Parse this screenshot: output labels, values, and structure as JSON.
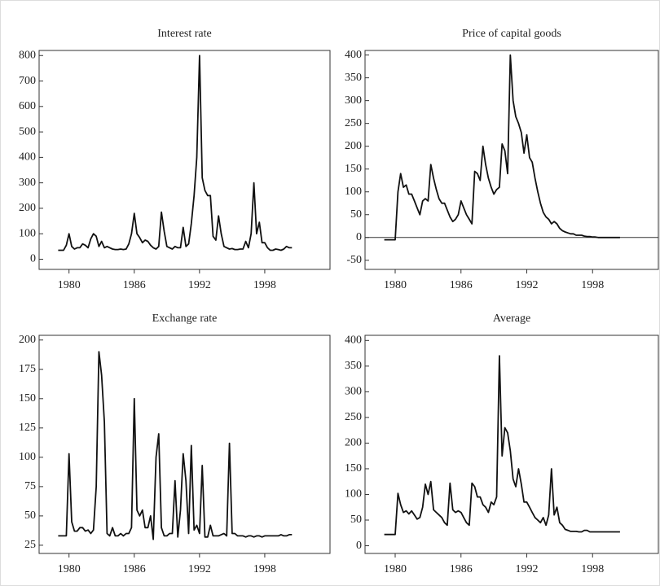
{
  "chart_data": [
    {
      "type": "line",
      "title": "Interest rate",
      "color": "#111111",
      "x": [
        1979,
        1979.25,
        1979.5,
        1979.75,
        1980,
        1980.25,
        1980.5,
        1980.75,
        1981,
        1981.25,
        1981.5,
        1981.75,
        1982,
        1982.25,
        1982.5,
        1982.75,
        1983,
        1983.25,
        1983.5,
        1983.75,
        1984,
        1984.25,
        1984.5,
        1984.75,
        1985,
        1985.25,
        1985.5,
        1985.75,
        1986,
        1986.25,
        1986.5,
        1986.75,
        1987,
        1987.25,
        1987.5,
        1987.75,
        1988,
        1988.25,
        1988.5,
        1988.75,
        1989,
        1989.25,
        1989.5,
        1989.75,
        1990,
        1990.25,
        1990.5,
        1990.75,
        1991,
        1991.25,
        1991.5,
        1991.75,
        1992,
        1992.25,
        1992.5,
        1992.75,
        1993,
        1993.25,
        1993.5,
        1993.75,
        1994,
        1994.25,
        1994.5,
        1994.75,
        1995,
        1995.25,
        1995.5,
        1995.75,
        1996,
        1996.25,
        1996.5,
        1996.75,
        1997,
        1997.25,
        1997.5,
        1997.75,
        1998,
        1998.25,
        1998.5,
        1998.75,
        1999,
        1999.25,
        1999.5,
        1999.75,
        2000,
        2000.25,
        2000.5
      ],
      "values": [
        35,
        35,
        35,
        55,
        100,
        50,
        40,
        45,
        45,
        60,
        55,
        45,
        80,
        100,
        90,
        50,
        70,
        45,
        50,
        45,
        40,
        38,
        38,
        40,
        38,
        40,
        60,
        100,
        180,
        100,
        85,
        65,
        75,
        70,
        55,
        45,
        40,
        50,
        185,
        110,
        50,
        45,
        40,
        50,
        45,
        45,
        125,
        50,
        60,
        140,
        250,
        400,
        800,
        320,
        270,
        250,
        250,
        90,
        75,
        170,
        100,
        50,
        45,
        40,
        42,
        38,
        38,
        40,
        40,
        70,
        45,
        100,
        300,
        100,
        145,
        65,
        65,
        45,
        35,
        35,
        40,
        38,
        35,
        40,
        50,
        45,
        45
      ],
      "xlim": [
        1977.25,
        2004
      ],
      "xticks": [
        1980,
        1986,
        1992,
        1998
      ],
      "ylim": [
        -40,
        820
      ],
      "yticks": [
        0,
        100,
        200,
        300,
        400,
        500,
        600,
        700,
        800
      ]
    },
    {
      "type": "line",
      "title": "Price of capital goods",
      "color": "#111111",
      "x": [
        1979,
        1979.25,
        1979.5,
        1979.75,
        1980,
        1980.25,
        1980.5,
        1980.75,
        1981,
        1981.25,
        1981.5,
        1981.75,
        1982,
        1982.25,
        1982.5,
        1982.75,
        1983,
        1983.25,
        1983.5,
        1983.75,
        1984,
        1984.25,
        1984.5,
        1984.75,
        1985,
        1985.25,
        1985.5,
        1985.75,
        1986,
        1986.25,
        1986.5,
        1986.75,
        1987,
        1987.25,
        1987.5,
        1987.75,
        1988,
        1988.25,
        1988.5,
        1988.75,
        1989,
        1989.25,
        1989.5,
        1989.75,
        1990,
        1990.25,
        1990.5,
        1990.75,
        1991,
        1991.25,
        1991.5,
        1991.75,
        1992,
        1992.25,
        1992.5,
        1992.75,
        1993,
        1993.25,
        1993.5,
        1993.75,
        1994,
        1994.25,
        1994.5,
        1994.75,
        1995,
        1995.25,
        1995.5,
        1995.75,
        1996,
        1996.25,
        1996.5,
        1996.75,
        1997,
        1997.25,
        1997.5,
        1997.75,
        1998,
        1998.25,
        1998.5,
        1998.75,
        1999,
        1999.25,
        1999.5,
        1999.75,
        2000,
        2000.25,
        2000.5
      ],
      "values": [
        -5,
        -5,
        -5,
        -5,
        -5,
        100,
        140,
        110,
        115,
        95,
        95,
        80,
        65,
        50,
        80,
        85,
        80,
        160,
        130,
        105,
        85,
        75,
        75,
        60,
        45,
        35,
        40,
        50,
        80,
        65,
        50,
        40,
        30,
        145,
        140,
        125,
        200,
        160,
        130,
        110,
        95,
        105,
        110,
        205,
        190,
        140,
        400,
        300,
        265,
        250,
        230,
        185,
        225,
        175,
        165,
        130,
        100,
        75,
        55,
        45,
        40,
        30,
        35,
        30,
        20,
        15,
        12,
        10,
        8,
        8,
        5,
        5,
        5,
        3,
        2,
        2,
        1,
        1,
        0,
        0,
        0,
        0,
        0,
        0,
        0,
        0,
        0
      ],
      "xlim": [
        1977.25,
        2004
      ],
      "xticks": [
        1980,
        1986,
        1992,
        1998
      ],
      "ylim": [
        -70,
        410
      ],
      "yticks": [
        -50,
        0,
        50,
        100,
        150,
        200,
        250,
        300,
        350,
        400
      ],
      "zero_line": true
    },
    {
      "type": "line",
      "title": "Exchange rate",
      "color": "#111111",
      "x": [
        1979,
        1979.25,
        1979.5,
        1979.75,
        1980,
        1980.25,
        1980.5,
        1980.75,
        1981,
        1981.25,
        1981.5,
        1981.75,
        1982,
        1982.25,
        1982.5,
        1982.75,
        1983,
        1983.25,
        1983.5,
        1983.75,
        1984,
        1984.25,
        1984.5,
        1984.75,
        1985,
        1985.25,
        1985.5,
        1985.75,
        1986,
        1986.25,
        1986.5,
        1986.75,
        1987,
        1987.25,
        1987.5,
        1987.75,
        1988,
        1988.25,
        1988.5,
        1988.75,
        1989,
        1989.25,
        1989.5,
        1989.75,
        1990,
        1990.25,
        1990.5,
        1990.75,
        1991,
        1991.25,
        1991.5,
        1991.75,
        1992,
        1992.25,
        1992.5,
        1992.75,
        1993,
        1993.25,
        1993.5,
        1993.75,
        1994,
        1994.25,
        1994.5,
        1994.75,
        1995,
        1995.25,
        1995.5,
        1995.75,
        1996,
        1996.25,
        1996.5,
        1996.75,
        1997,
        1997.25,
        1997.5,
        1997.75,
        1998,
        1998.25,
        1998.5,
        1998.75,
        1999,
        1999.25,
        1999.5,
        1999.75,
        2000,
        2000.25,
        2000.5
      ],
      "values": [
        33,
        33,
        33,
        33,
        103,
        45,
        37,
        37,
        40,
        40,
        37,
        38,
        35,
        38,
        75,
        190,
        170,
        130,
        35,
        33,
        40,
        33,
        33,
        35,
        33,
        35,
        35,
        40,
        150,
        55,
        50,
        55,
        40,
        40,
        50,
        30,
        100,
        120,
        40,
        33,
        33,
        35,
        35,
        80,
        32,
        55,
        103,
        80,
        35,
        110,
        38,
        42,
        35,
        93,
        32,
        32,
        42,
        33,
        33,
        33,
        34,
        35,
        33,
        112,
        35,
        35,
        33,
        33,
        33,
        32,
        33,
        33,
        32,
        33,
        33,
        32,
        33,
        33,
        33,
        33,
        33,
        33,
        34,
        33,
        33,
        34,
        34
      ],
      "xlim": [
        1977.25,
        2004
      ],
      "xticks": [
        1980,
        1986,
        1992,
        1998
      ],
      "ylim": [
        18,
        204
      ],
      "yticks": [
        25,
        50,
        75,
        100,
        125,
        150,
        175,
        200
      ]
    },
    {
      "type": "line",
      "title": "Average",
      "color": "#111111",
      "x": [
        1979,
        1979.25,
        1979.5,
        1979.75,
        1980,
        1980.25,
        1980.5,
        1980.75,
        1981,
        1981.25,
        1981.5,
        1981.75,
        1982,
        1982.25,
        1982.5,
        1982.75,
        1983,
        1983.25,
        1983.5,
        1983.75,
        1984,
        1984.25,
        1984.5,
        1984.75,
        1985,
        1985.25,
        1985.5,
        1985.75,
        1986,
        1986.25,
        1986.5,
        1986.75,
        1987,
        1987.25,
        1987.5,
        1987.75,
        1988,
        1988.25,
        1988.5,
        1988.75,
        1989,
        1989.25,
        1989.5,
        1989.75,
        1990,
        1990.25,
        1990.5,
        1990.75,
        1991,
        1991.25,
        1991.5,
        1991.75,
        1992,
        1992.25,
        1992.5,
        1992.75,
        1993,
        1993.25,
        1993.5,
        1993.75,
        1994,
        1994.25,
        1994.5,
        1994.75,
        1995,
        1995.25,
        1995.5,
        1995.75,
        1996,
        1996.25,
        1996.5,
        1996.75,
        1997,
        1997.25,
        1997.5,
        1997.75,
        1998,
        1998.25,
        1998.5,
        1998.75,
        1999,
        1999.25,
        1999.5,
        1999.75,
        2000,
        2000.25,
        2000.5
      ],
      "values": [
        22,
        22,
        22,
        22,
        22,
        102,
        80,
        65,
        68,
        62,
        68,
        60,
        52,
        55,
        75,
        120,
        100,
        125,
        70,
        65,
        60,
        55,
        45,
        40,
        122,
        70,
        65,
        68,
        65,
        55,
        45,
        40,
        122,
        115,
        95,
        95,
        80,
        75,
        65,
        85,
        80,
        95,
        370,
        175,
        230,
        220,
        185,
        130,
        115,
        150,
        120,
        85,
        85,
        75,
        65,
        55,
        50,
        45,
        55,
        40,
        60,
        150,
        60,
        75,
        45,
        40,
        32,
        30,
        28,
        28,
        28,
        27,
        27,
        30,
        30,
        27,
        27,
        27,
        27,
        27,
        27,
        27,
        27,
        27,
        27,
        27,
        27
      ],
      "xlim": [
        1977.25,
        2004
      ],
      "xticks": [
        1980,
        1986,
        1992,
        1998
      ],
      "ylim": [
        -15,
        410
      ],
      "yticks": [
        0,
        50,
        100,
        150,
        200,
        250,
        300,
        350,
        400
      ]
    }
  ]
}
